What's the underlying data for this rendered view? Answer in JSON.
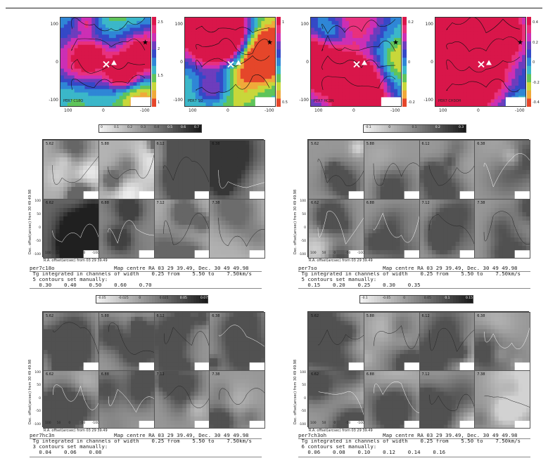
{
  "colors": {
    "rainbow": [
      "#d9164a",
      "#e8317d",
      "#cc2fb5",
      "#6d3dbd",
      "#3449c7",
      "#2f86d6",
      "#3bb7c9",
      "#5fc45b",
      "#c8d73a",
      "#f0a93a",
      "#e5462a"
    ],
    "gray_light": "#f2f2f2",
    "gray_dark": "#1e1e1e"
  },
  "maps": [
    {
      "label": "PER7 C18O",
      "cbar_ticks": [
        "2.5",
        "2",
        "1.5",
        "1"
      ],
      "xticks": [
        "100",
        "0",
        "-100"
      ],
      "yticks": [
        "100",
        "0",
        "-100"
      ]
    },
    {
      "label": "PER7 SO",
      "cbar_ticks": [
        "1",
        "0.5"
      ],
      "xticks": [
        "100",
        "0",
        "-100"
      ],
      "yticks": [
        "100",
        "0",
        "-100"
      ]
    },
    {
      "label": "PER7 HC3N",
      "cbar_ticks": [
        "0.2",
        "0",
        "-0.2"
      ],
      "xticks": [
        "100",
        "0",
        "-100"
      ],
      "yticks": [
        "100",
        "0",
        "-100"
      ]
    },
    {
      "label": "PER7 CH3OH",
      "cbar_ticks": [
        "0.4",
        "0.2",
        "0",
        "-0.2",
        "-0.4"
      ],
      "xticks": [
        "100",
        "0",
        "-100"
      ],
      "yticks": [
        "100",
        "0",
        "-100"
      ]
    }
  ],
  "channel_grids": [
    {
      "colorbar_labels": [
        "0",
        "0.1",
        "0.2",
        "0.3",
        "0.4",
        "0.5",
        "0.6",
        "0.7"
      ],
      "velocities": [
        "5.62",
        "5.88",
        "6.12",
        "6.38",
        "6.62",
        "6.88",
        "7.12",
        "7.38"
      ],
      "ylabel": "Dec. offset(arcsec) from  30 49 49.98",
      "xlabel": "R.A. offset(arcsec) from 03 29 39.49",
      "xticks": [
        "100",
        "50",
        "0",
        "-50",
        "-100"
      ],
      "yticks": [
        "100",
        "50",
        "0",
        "-50",
        "-100"
      ],
      "caption": {
        "line1": "per7c18o                   Map centre RA 03 29 39.49, Dec. 30 49 49.98",
        "line2": " Tg integrated in channels of width    0.25 from    5.50 to    7.50km/s",
        "line3": " 5 contours set manually:",
        "line4": "   0.30    0.40    0.50    0.60    0.70"
      }
    },
    {
      "colorbar_labels": [
        "-0.1",
        "0",
        "0.1",
        "0.2",
        "0.3"
      ],
      "velocities": [
        "5.62",
        "5.88",
        "6.12",
        "6.38",
        "6.62",
        "6.88",
        "7.12",
        "7.38"
      ],
      "ylabel": "Dec. offset(arcsec) from  30 49 49.98",
      "xlabel": "R.A. offset(arcsec) from 03 29 39.49",
      "xticks": [
        "100",
        "50",
        "0",
        "-50",
        "-100"
      ],
      "yticks": [
        "100",
        "50",
        "0",
        "-50",
        "-100"
      ],
      "caption": {
        "line1": "per7so                     Map centre RA 03 29 39.49, Dec. 30 49 49.98",
        "line2": " Tg integrated in channels of width    0.25 from    5.50 to    7.50km/s",
        "line3": " 5 contours set manually:",
        "line4": "   0.15    0.20    0.25    0.30    0.35"
      }
    },
    {
      "colorbar_labels": [
        "-0.05",
        "-0.025",
        "0",
        "0.025",
        "0.05",
        "0.075"
      ],
      "velocities": [
        "5.62",
        "5.88",
        "6.12",
        "6.38",
        "6.62",
        "6.88",
        "7.12",
        "7.38"
      ],
      "ylabel": "Dec. offset(arcsec) from  30 49 49.98",
      "xlabel": "R.A. offset(arcsec) from 03 29 39.49",
      "xticks": [
        "100",
        "50",
        "0",
        "-50",
        "-100"
      ],
      "yticks": [
        "100",
        "50",
        "0",
        "-50",
        "-100"
      ],
      "caption": {
        "line1": "per7hc3n                   Map centre RA 03 29 39.49, Dec. 30 49 49.98",
        "line2": " Tg integrated in channels of width    0.25 from    5.50 to    7.50km/s",
        "line3": " 3 contours set manually:",
        "line4": "   0.04    0.06    0.08"
      }
    },
    {
      "colorbar_labels": [
        "-0.1",
        "-0.05",
        "0",
        "0.05",
        "0.1",
        "0.15"
      ],
      "velocities": [
        "5.62",
        "5.88",
        "6.12",
        "6.38",
        "6.62",
        "6.88",
        "7.12",
        "7.38"
      ],
      "ylabel": "Dec. offset(arcsec) from  30 49 49.98",
      "xlabel": "R.A. offset(arcsec) from 03 29 39.49",
      "xticks": [
        "100",
        "50",
        "0",
        "-50",
        "-100"
      ],
      "yticks": [
        "100",
        "50",
        "0",
        "-50",
        "-100"
      ],
      "caption": {
        "line1": "per7ch3oh                  Map centre RA 03 29 39.49, Dec. 30 49 49.98",
        "line2": " Tg integrated in channels of width    0.25 from    5.50 to    7.50km/s",
        "line3": " 6 contours set manually:",
        "line4": "   0.06    0.08    0.10    0.12    0.14    0.16"
      }
    }
  ]
}
